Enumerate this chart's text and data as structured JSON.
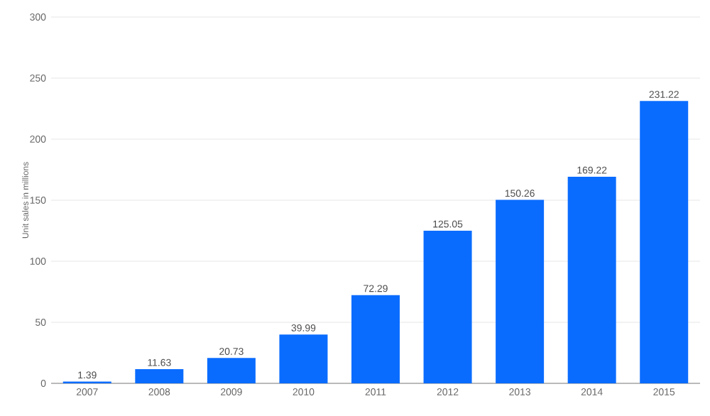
{
  "chart_data": {
    "type": "bar",
    "ylabel": "Unit sales in millions",
    "categories": [
      "2007",
      "2008",
      "2009",
      "2010",
      "2011",
      "2012",
      "2013",
      "2014",
      "2015"
    ],
    "values": [
      1.39,
      11.63,
      20.73,
      39.99,
      72.29,
      125.05,
      150.26,
      169.22,
      231.22
    ],
    "color": "#0a6cff",
    "ylim": [
      0,
      300
    ],
    "yticks": [
      0,
      50,
      100,
      150,
      200,
      250,
      300
    ],
    "grid": "y",
    "data_labels": true
  }
}
